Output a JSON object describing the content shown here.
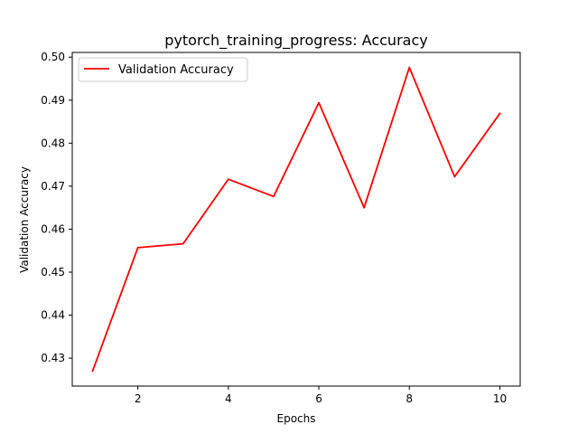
{
  "chart_data": {
    "type": "line",
    "title": "pytorch_training_progress: Accuracy",
    "xlabel": "Epochs",
    "ylabel": "Validation Accuracy",
    "x": [
      1,
      2,
      3,
      4,
      5,
      6,
      7,
      8,
      9,
      10
    ],
    "series": [
      {
        "name": "Validation Accuracy",
        "color": "#ff0000",
        "values": [
          0.427,
          0.4557,
          0.4566,
          0.4716,
          0.4676,
          0.4894,
          0.465,
          0.4976,
          0.4722,
          0.4869
        ]
      }
    ],
    "xlim": [
      0.55,
      10.45
    ],
    "ylim": [
      0.4235,
      0.5011
    ],
    "xticks": [
      2,
      4,
      6,
      8,
      10
    ],
    "xtick_labels": [
      "2",
      "4",
      "6",
      "8",
      "10"
    ],
    "yticks": [
      0.43,
      0.44,
      0.45,
      0.46,
      0.47,
      0.48,
      0.49,
      0.5
    ],
    "ytick_labels": [
      "0.43",
      "0.44",
      "0.45",
      "0.46",
      "0.47",
      "0.48",
      "0.49",
      "0.50"
    ],
    "grid": false,
    "legend_position": "top-left"
  }
}
